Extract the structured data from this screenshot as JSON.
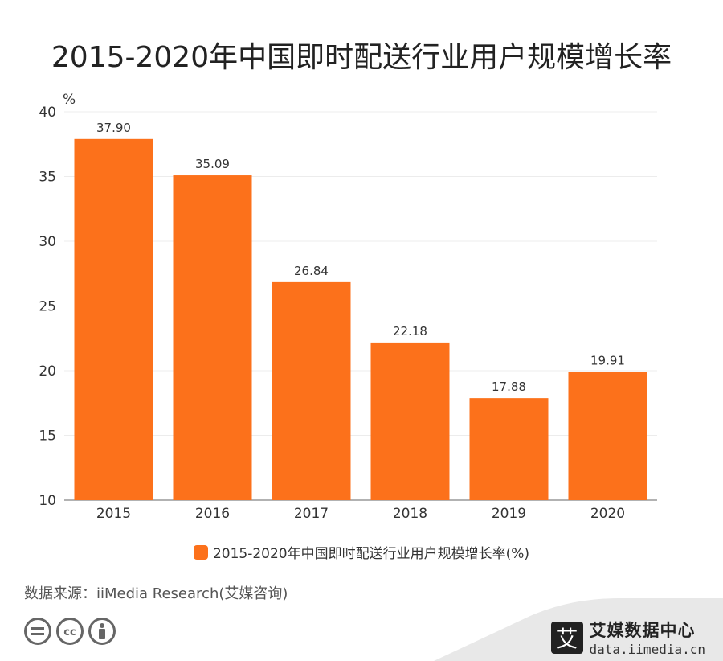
{
  "title": "2015-2020年中国即时配送行业用户规模增长率",
  "chart_data": {
    "type": "bar",
    "categories": [
      "2015",
      "2016",
      "2017",
      "2018",
      "2019",
      "2020"
    ],
    "values": [
      37.9,
      35.09,
      26.84,
      22.18,
      17.88,
      19.91
    ],
    "value_labels": [
      "37.90",
      "35.09",
      "26.84",
      "22.18",
      "17.88",
      "19.91"
    ],
    "ylabel": "%",
    "ylim": [
      10,
      40
    ],
    "yticks": [
      10,
      15,
      20,
      25,
      30,
      35,
      40
    ],
    "grid": true,
    "legend": {
      "position": "bottom",
      "label": "2015-2020年中国即时配送行业用户规模增长率(%)"
    },
    "bar_color": "#fc711b"
  },
  "source": "数据来源：iiMedia Research(艾媒咨询)",
  "brand": {
    "mark": "艾",
    "name": "艾媒数据中心",
    "url": "data.iimedia.cn"
  },
  "icons": [
    "equal-icon",
    "cc-icon",
    "person-icon"
  ]
}
